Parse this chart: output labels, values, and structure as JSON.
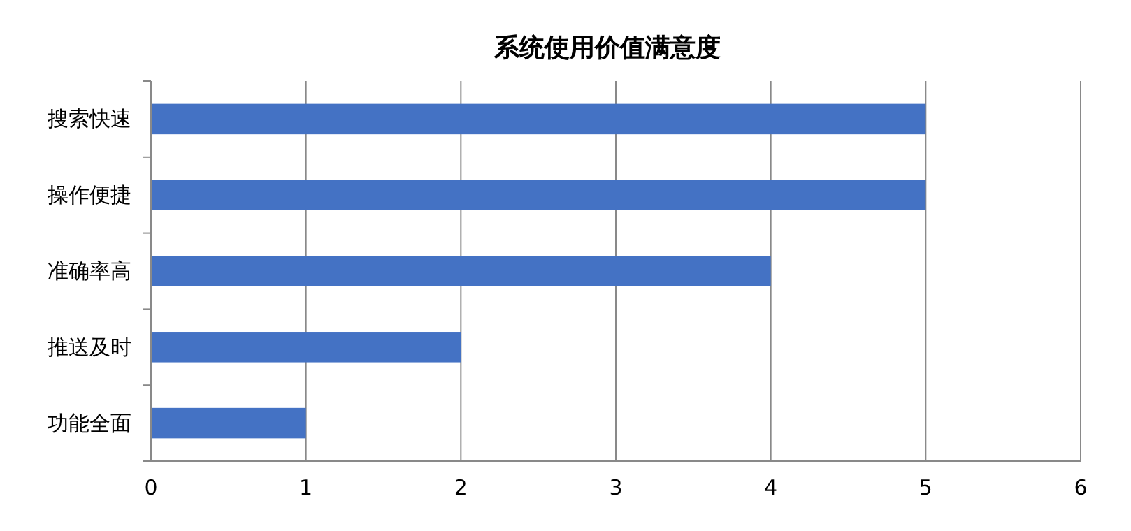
{
  "chart_data": {
    "type": "bar",
    "title": "系统使用价值满意度",
    "orientation": "horizontal",
    "categories": [
      "搜索快速",
      "操作便捷",
      "准确率高",
      "推送及时",
      "功能全面"
    ],
    "values": [
      5,
      5,
      4,
      2,
      1
    ],
    "color": "#4472c4",
    "xlim": [
      0,
      6
    ],
    "xticks": [
      0,
      1,
      2,
      3,
      4,
      5,
      6
    ],
    "grid": "x"
  }
}
